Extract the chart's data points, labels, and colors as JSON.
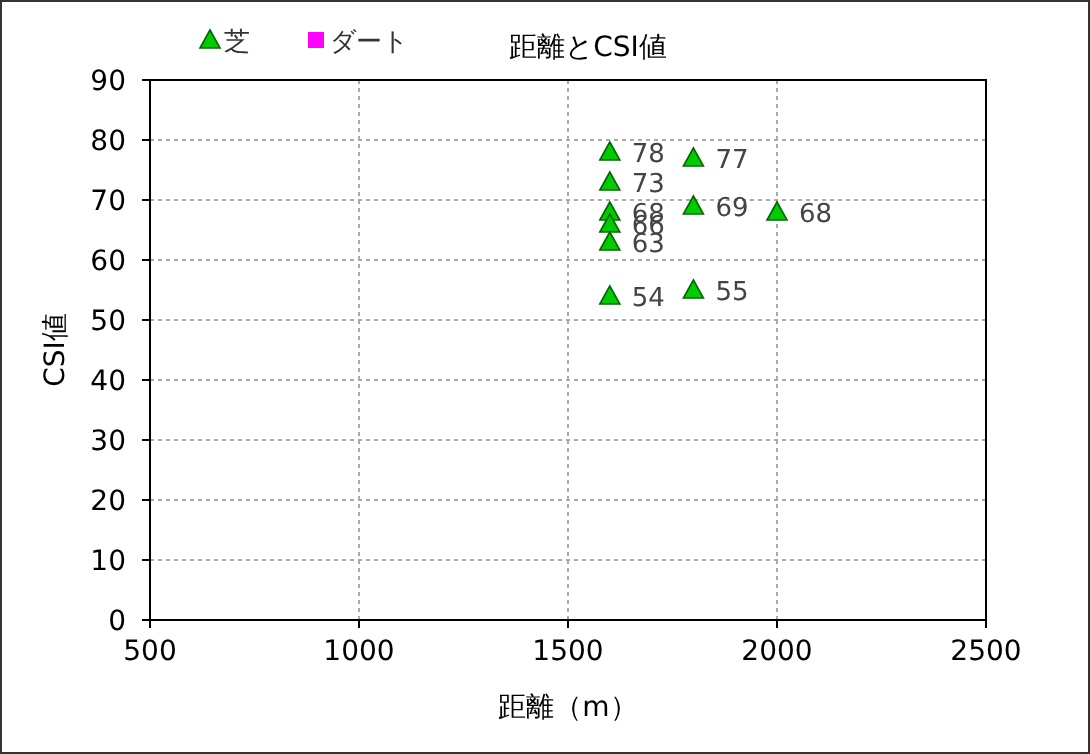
{
  "chart_data": {
    "type": "scatter",
    "title": "距離とCSI値",
    "xlabel": "距離（m）",
    "ylabel": "CSI値",
    "xlim": [
      500,
      2500
    ],
    "xticks": [
      500,
      1000,
      1500,
      2000,
      2500
    ],
    "ylim": [
      0,
      90
    ],
    "yticks": [
      0,
      10,
      20,
      30,
      40,
      50,
      60,
      70,
      80,
      90
    ],
    "grid": true,
    "legend": "top left",
    "data_labels": true,
    "series": [
      {
        "name": "芝",
        "color": "#00cc00",
        "marker": "triangle",
        "x": [
          1600,
          1600,
          1600,
          1600,
          1600,
          1600,
          1800,
          1800,
          1800,
          2000
        ],
        "values": [
          78,
          73,
          68,
          66,
          63,
          54,
          77,
          69,
          55,
          68
        ]
      },
      {
        "name": "ダート",
        "color": "#ff00ff",
        "marker": "square"
      }
    ]
  }
}
